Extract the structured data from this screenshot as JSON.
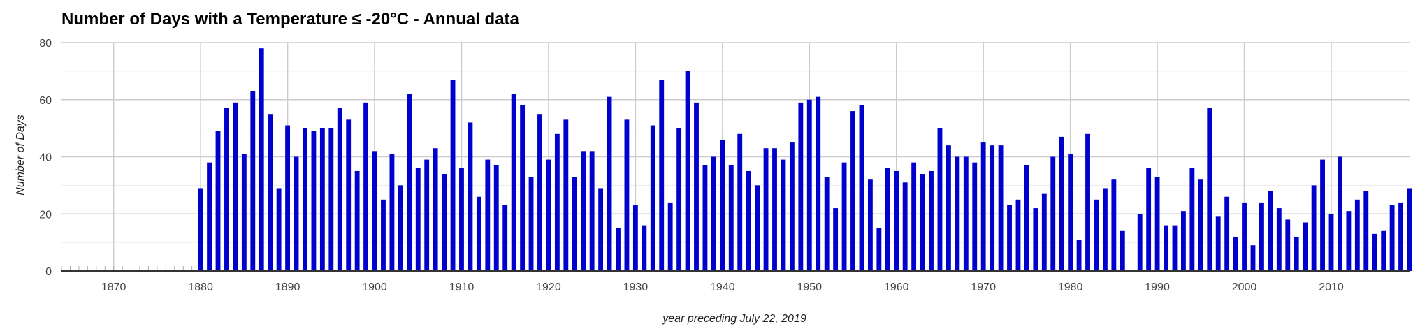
{
  "chart_data": {
    "type": "bar",
    "title": "Number of Days with a Temperature ≤ -20°C - Annual data",
    "xlabel": "year preceding July 22, 2019",
    "ylabel": "Number of Days",
    "ylim": [
      0,
      80
    ],
    "xlim": [
      1864,
      2019
    ],
    "y_ticks": [
      "0",
      "20",
      "40",
      "60",
      "80"
    ],
    "x_ticks": [
      "1870",
      "1880",
      "1890",
      "1900",
      "1910",
      "1920",
      "1930",
      "1940",
      "1950",
      "1960",
      "1970",
      "1980",
      "1990",
      "2000",
      "2010"
    ],
    "grid": true,
    "legend": "none",
    "colors": {
      "bar": "#0000cc",
      "grid": "#cccccc",
      "minor_grid": "#ebebeb",
      "axis": "#333333"
    },
    "series": [
      {
        "x": [
          1880,
          1881,
          1882,
          1883,
          1884,
          1885,
          1886,
          1887,
          1888,
          1889,
          1890,
          1891,
          1892,
          1893,
          1894,
          1895,
          1896,
          1897,
          1898,
          1899,
          1900,
          1901,
          1902,
          1903,
          1904,
          1905,
          1906,
          1907,
          1908,
          1909,
          1910,
          1911,
          1912,
          1913,
          1914,
          1915,
          1916,
          1917,
          1918,
          1919,
          1920,
          1921,
          1922,
          1923,
          1924,
          1925,
          1926,
          1927,
          1928,
          1929,
          1930,
          1931,
          1932,
          1933,
          1934,
          1935,
          1936,
          1937,
          1938,
          1939,
          1940,
          1941,
          1942,
          1943,
          1944,
          1945,
          1946,
          1947,
          1948,
          1949,
          1950,
          1951,
          1952,
          1953,
          1954,
          1955,
          1956,
          1957,
          1958,
          1959,
          1960,
          1961,
          1962,
          1963,
          1964,
          1965,
          1966,
          1967,
          1968,
          1969,
          1970,
          1971,
          1972,
          1973,
          1974,
          1975,
          1976,
          1977,
          1978,
          1979,
          1980,
          1981,
          1982,
          1983,
          1984,
          1985,
          1986,
          1988,
          1989,
          1990,
          1991,
          1992,
          1993,
          1994,
          1995,
          1996,
          1997,
          1998,
          1999,
          2000,
          2001,
          2002,
          2003,
          2004,
          2005,
          2006,
          2007,
          2008,
          2009,
          2010,
          2011,
          2012,
          2013,
          2014,
          2015,
          2016,
          2017,
          2018,
          2019
        ],
        "values": [
          29,
          38,
          49,
          57,
          59,
          41,
          63,
          78,
          55,
          29,
          51,
          40,
          50,
          49,
          50,
          50,
          57,
          53,
          35,
          59,
          42,
          25,
          41,
          30,
          62,
          36,
          39,
          43,
          34,
          67,
          36,
          52,
          26,
          39,
          37,
          23,
          62,
          58,
          33,
          55,
          39,
          48,
          53,
          33,
          42,
          42,
          29,
          61,
          15,
          53,
          23,
          16,
          51,
          67,
          24,
          50,
          70,
          59,
          37,
          40,
          46,
          37,
          48,
          35,
          30,
          43,
          43,
          39,
          45,
          59,
          60,
          61,
          33,
          22,
          38,
          56,
          58,
          32,
          15,
          36,
          35,
          31,
          38,
          34,
          35,
          50,
          44,
          40,
          40,
          38,
          45,
          44,
          44,
          23,
          25,
          37,
          22,
          27,
          40,
          47,
          41,
          11,
          48,
          25,
          29,
          32,
          14,
          20,
          36,
          33,
          16,
          16,
          21,
          36,
          32,
          57,
          19,
          26,
          12,
          24,
          9,
          24,
          28,
          22,
          18,
          12,
          17,
          30,
          39,
          20,
          40,
          21,
          25,
          28,
          13,
          14,
          23,
          24,
          29
        ]
      }
    ]
  }
}
